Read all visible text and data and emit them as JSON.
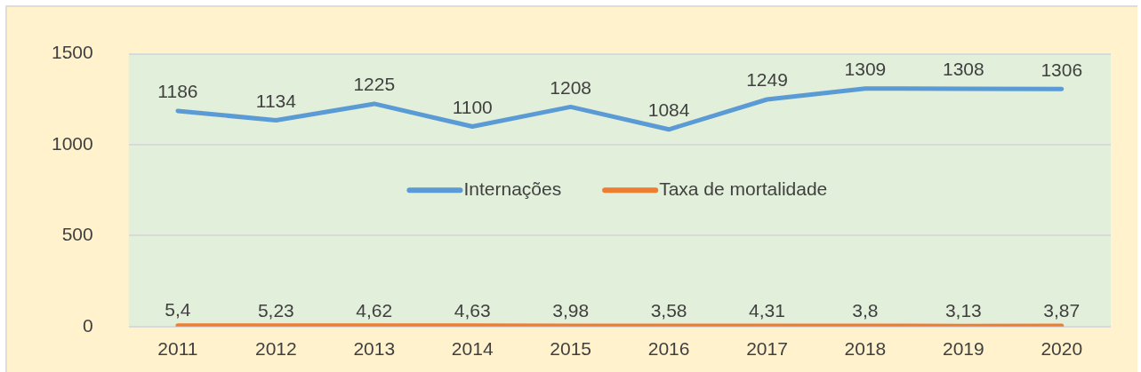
{
  "chart_data": {
    "type": "line",
    "categories": [
      "2011",
      "2012",
      "2013",
      "2014",
      "2015",
      "2016",
      "2017",
      "2018",
      "2019",
      "2020"
    ],
    "series": [
      {
        "name": "Internações",
        "color": "#5b9bd5",
        "values": [
          1186,
          1134,
          1225,
          1100,
          1208,
          1084,
          1249,
          1309,
          1308,
          1306
        ],
        "value_labels": [
          "1186",
          "1134",
          "1225",
          "1100",
          "1208",
          "1084",
          "1249",
          "1309",
          "1308",
          "1306"
        ]
      },
      {
        "name": "Taxa de mortalidade",
        "color": "#ed7d31",
        "values": [
          5.4,
          5.23,
          4.62,
          4.63,
          3.98,
          3.58,
          4.31,
          3.8,
          3.13,
          3.87
        ],
        "value_labels": [
          "5,4",
          "5,23",
          "4,62",
          "4,63",
          "3,98",
          "3,58",
          "4,31",
          "3,8",
          "3,13",
          "3,87"
        ]
      }
    ],
    "ylim": [
      0,
      1500
    ],
    "yticks": [
      0,
      500,
      1000,
      1500
    ],
    "grid": "y",
    "legend": "center",
    "marker": "none"
  }
}
